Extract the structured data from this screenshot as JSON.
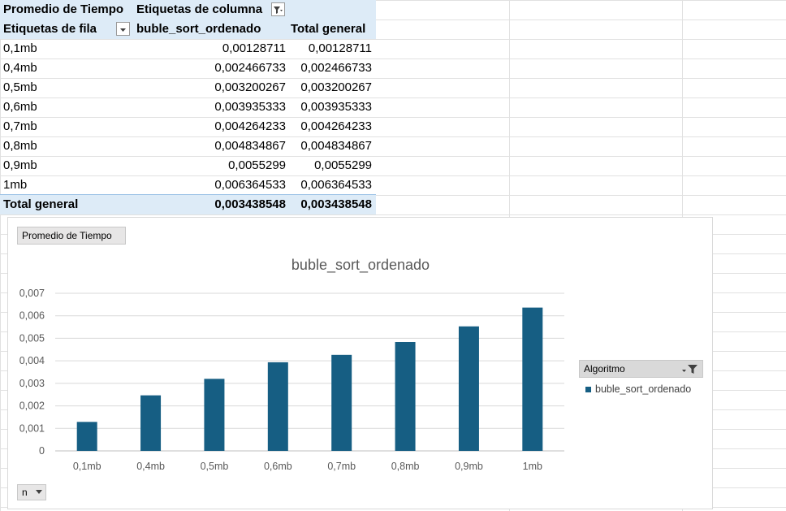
{
  "pivot": {
    "value_field": "Promedio de Tiempo",
    "column_labels": "Etiquetas de columna",
    "row_labels": "Etiquetas de fila",
    "series_header": "buble_sort_ordenado",
    "total_header": "Total general",
    "rows": [
      {
        "label": "0,1mb",
        "value": "0,00128711",
        "total": "0,00128711"
      },
      {
        "label": "0,4mb",
        "value": "0,002466733",
        "total": "0,002466733"
      },
      {
        "label": "0,5mb",
        "value": "0,003200267",
        "total": "0,003200267"
      },
      {
        "label": "0,6mb",
        "value": "0,003935333",
        "total": "0,003935333"
      },
      {
        "label": "0,7mb",
        "value": "0,004264233",
        "total": "0,004264233"
      },
      {
        "label": "0,8mb",
        "value": "0,004834867",
        "total": "0,004834867"
      },
      {
        "label": "0,9mb",
        "value": "0,0055299",
        "total": "0,0055299"
      },
      {
        "label": "1mb",
        "value": "0,006364533",
        "total": "0,006364533"
      }
    ],
    "grand_total": {
      "label": "Total general",
      "value": "0,003438548",
      "total": "0,003438548"
    }
  },
  "chart": {
    "value_button": "Promedio de Tiempo",
    "axis_button": "n",
    "legend_button": "Algoritmo"
  },
  "chart_data": {
    "type": "bar",
    "title": "buble_sort_ordenado",
    "categories": [
      "0,1mb",
      "0,4mb",
      "0,5mb",
      "0,6mb",
      "0,7mb",
      "0,8mb",
      "0,9mb",
      "1mb"
    ],
    "series": [
      {
        "name": "buble_sort_ordenado",
        "values": [
          0.00128711,
          0.002466733,
          0.003200267,
          0.003935333,
          0.004264233,
          0.004834867,
          0.0055299,
          0.006364533
        ]
      }
    ],
    "y_ticks": [
      "0",
      "0,001",
      "0,002",
      "0,003",
      "0,004",
      "0,005",
      "0,006",
      "0,007"
    ],
    "ylim": [
      0,
      0.007
    ],
    "grid": true,
    "legend": "right",
    "colors": {
      "bar": "#165e83",
      "grid": "#d9d9d9",
      "text": "#595959"
    }
  }
}
